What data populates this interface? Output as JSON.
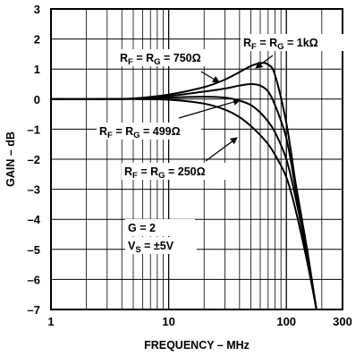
{
  "chart_data": {
    "type": "line",
    "xlabel": "FREQUENCY – MHz",
    "ylabel": "GAIN – dB",
    "xscale": "log",
    "xlim": [
      1,
      300
    ],
    "ylim": [
      -7,
      3
    ],
    "grid": true,
    "xticks": [
      {
        "value": 1,
        "label": "1"
      },
      {
        "value": 10,
        "label": "10"
      },
      {
        "value": 100,
        "label": "100"
      },
      {
        "value": 300,
        "label": "300"
      }
    ],
    "yticks": [
      {
        "value": 3,
        "label": "3"
      },
      {
        "value": 2,
        "label": "2"
      },
      {
        "value": 1,
        "label": "1"
      },
      {
        "value": 0,
        "label": "0"
      },
      {
        "value": -1,
        "label": "–1"
      },
      {
        "value": -2,
        "label": "–2"
      },
      {
        "value": -3,
        "label": "–3"
      },
      {
        "value": -4,
        "label": "–4"
      },
      {
        "value": -5,
        "label": "–5"
      },
      {
        "value": -6,
        "label": "–6"
      },
      {
        "value": -7,
        "label": "–7"
      }
    ],
    "series": [
      {
        "name": "R_F = R_G = 1kΩ",
        "x": [
          1,
          3,
          5,
          10,
          20,
          30,
          40,
          50,
          60,
          70,
          80,
          100,
          120,
          150,
          180
        ],
        "y": [
          0,
          0,
          0.02,
          0.15,
          0.4,
          0.65,
          0.9,
          1.1,
          1.2,
          1.15,
          0.8,
          -0.8,
          -2.8,
          -5.0,
          -7.0
        ]
      },
      {
        "name": "R_F = R_G = 750Ω",
        "x": [
          1,
          3,
          5,
          10,
          20,
          30,
          40,
          50,
          60,
          70,
          80,
          100,
          120,
          150,
          180
        ],
        "y": [
          0,
          0,
          0.02,
          0.1,
          0.25,
          0.35,
          0.45,
          0.5,
          0.45,
          0.25,
          -0.2,
          -1.3,
          -3.0,
          -5.1,
          -7.0
        ]
      },
      {
        "name": "R_F = R_G = 499Ω",
        "x": [
          1,
          3,
          5,
          10,
          20,
          30,
          40,
          50,
          60,
          70,
          80,
          100,
          120,
          150,
          180
        ],
        "y": [
          0,
          0,
          0.01,
          0.05,
          0.08,
          0.05,
          -0.05,
          -0.2,
          -0.45,
          -0.75,
          -1.1,
          -2.0,
          -3.3,
          -5.2,
          -7.0
        ]
      },
      {
        "name": "R_F = R_G = 250Ω",
        "x": [
          1,
          3,
          5,
          10,
          20,
          30,
          40,
          50,
          60,
          70,
          80,
          100,
          120,
          150,
          180
        ],
        "y": [
          0,
          0,
          0,
          -0.02,
          -0.15,
          -0.35,
          -0.6,
          -0.9,
          -1.2,
          -1.5,
          -1.85,
          -2.6,
          -3.7,
          -5.4,
          -7.0
        ]
      }
    ],
    "annotations": [
      {
        "main": "R",
        "sub": "F",
        "mid": " = R",
        "sub2": "G",
        "tail": " = 1kΩ"
      },
      {
        "main": "R",
        "sub": "F",
        "mid": " = R",
        "sub2": "G",
        "tail": " = 750Ω"
      },
      {
        "main": "R",
        "sub": "F",
        "mid": " = R",
        "sub2": "G",
        "tail": " = 499Ω"
      },
      {
        "main": "R",
        "sub": "F",
        "mid": " = R",
        "sub2": "G",
        "tail": " = 250Ω"
      }
    ],
    "conditions": [
      {
        "main": "G = 2"
      },
      {
        "main": "V",
        "sub": "S",
        "tail": " = ±5V"
      }
    ]
  }
}
